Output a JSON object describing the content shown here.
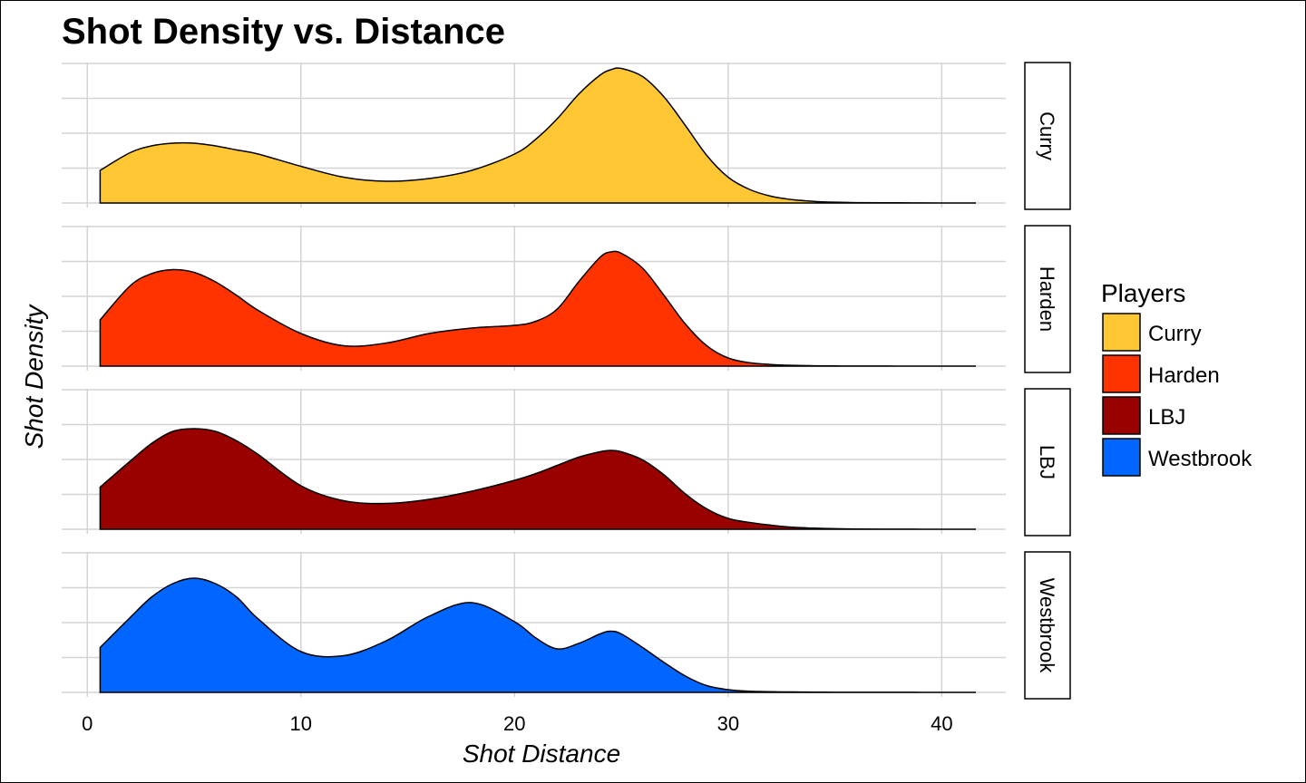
{
  "chart_data": {
    "type": "area",
    "title": "Shot Density vs. Distance",
    "xlabel": "Shot Distance",
    "ylabel": "Shot Density",
    "xlim": [
      -1.2,
      43
    ],
    "x_ticks": [
      0,
      10,
      20,
      30,
      40
    ],
    "ylim": [
      0,
      1
    ],
    "grid": true,
    "legend": {
      "title": "Players",
      "placement": "right",
      "entries": [
        "Curry",
        "Harden",
        "LBJ",
        "Westbrook"
      ]
    },
    "x": [
      0.6,
      2,
      3,
      4,
      5,
      6,
      7,
      8,
      10,
      12,
      14,
      16,
      18,
      20,
      21,
      22,
      23,
      24,
      24.5,
      25,
      26,
      27,
      28,
      29,
      30,
      31,
      32,
      33,
      34,
      35,
      36,
      38,
      40,
      41.6
    ],
    "series": [
      {
        "name": "Curry",
        "color": "#FFC733",
        "values": [
          0.24,
          0.37,
          0.42,
          0.44,
          0.44,
          0.42,
          0.39,
          0.36,
          0.27,
          0.19,
          0.16,
          0.18,
          0.24,
          0.36,
          0.47,
          0.62,
          0.8,
          0.94,
          0.98,
          0.99,
          0.93,
          0.78,
          0.57,
          0.35,
          0.19,
          0.1,
          0.05,
          0.025,
          0.012,
          0.006,
          0.003,
          0.001,
          0.0,
          0.0
        ]
      },
      {
        "name": "Harden",
        "color": "#FF3300",
        "values": [
          0.34,
          0.59,
          0.68,
          0.71,
          0.69,
          0.62,
          0.52,
          0.41,
          0.24,
          0.15,
          0.17,
          0.24,
          0.28,
          0.3,
          0.33,
          0.42,
          0.62,
          0.8,
          0.84,
          0.83,
          0.72,
          0.52,
          0.31,
          0.15,
          0.06,
          0.025,
          0.012,
          0.006,
          0.003,
          0.0015,
          0.0007,
          0.0003,
          0.0,
          0.0
        ]
      },
      {
        "name": "LBJ",
        "color": "#990000",
        "values": [
          0.31,
          0.5,
          0.63,
          0.72,
          0.74,
          0.72,
          0.65,
          0.55,
          0.32,
          0.21,
          0.19,
          0.22,
          0.28,
          0.36,
          0.41,
          0.47,
          0.53,
          0.57,
          0.58,
          0.57,
          0.51,
          0.4,
          0.26,
          0.15,
          0.08,
          0.05,
          0.03,
          0.015,
          0.008,
          0.004,
          0.002,
          0.001,
          0.0,
          0.0
        ]
      },
      {
        "name": "Westbrook",
        "color": "#0066FF",
        "values": [
          0.33,
          0.55,
          0.7,
          0.8,
          0.84,
          0.8,
          0.7,
          0.54,
          0.3,
          0.27,
          0.38,
          0.56,
          0.66,
          0.52,
          0.4,
          0.32,
          0.36,
          0.43,
          0.45,
          0.43,
          0.33,
          0.22,
          0.12,
          0.05,
          0.02,
          0.008,
          0.005,
          0.003,
          0.002,
          0.001,
          0.001,
          0.0005,
          0.0,
          0.0
        ]
      }
    ]
  }
}
